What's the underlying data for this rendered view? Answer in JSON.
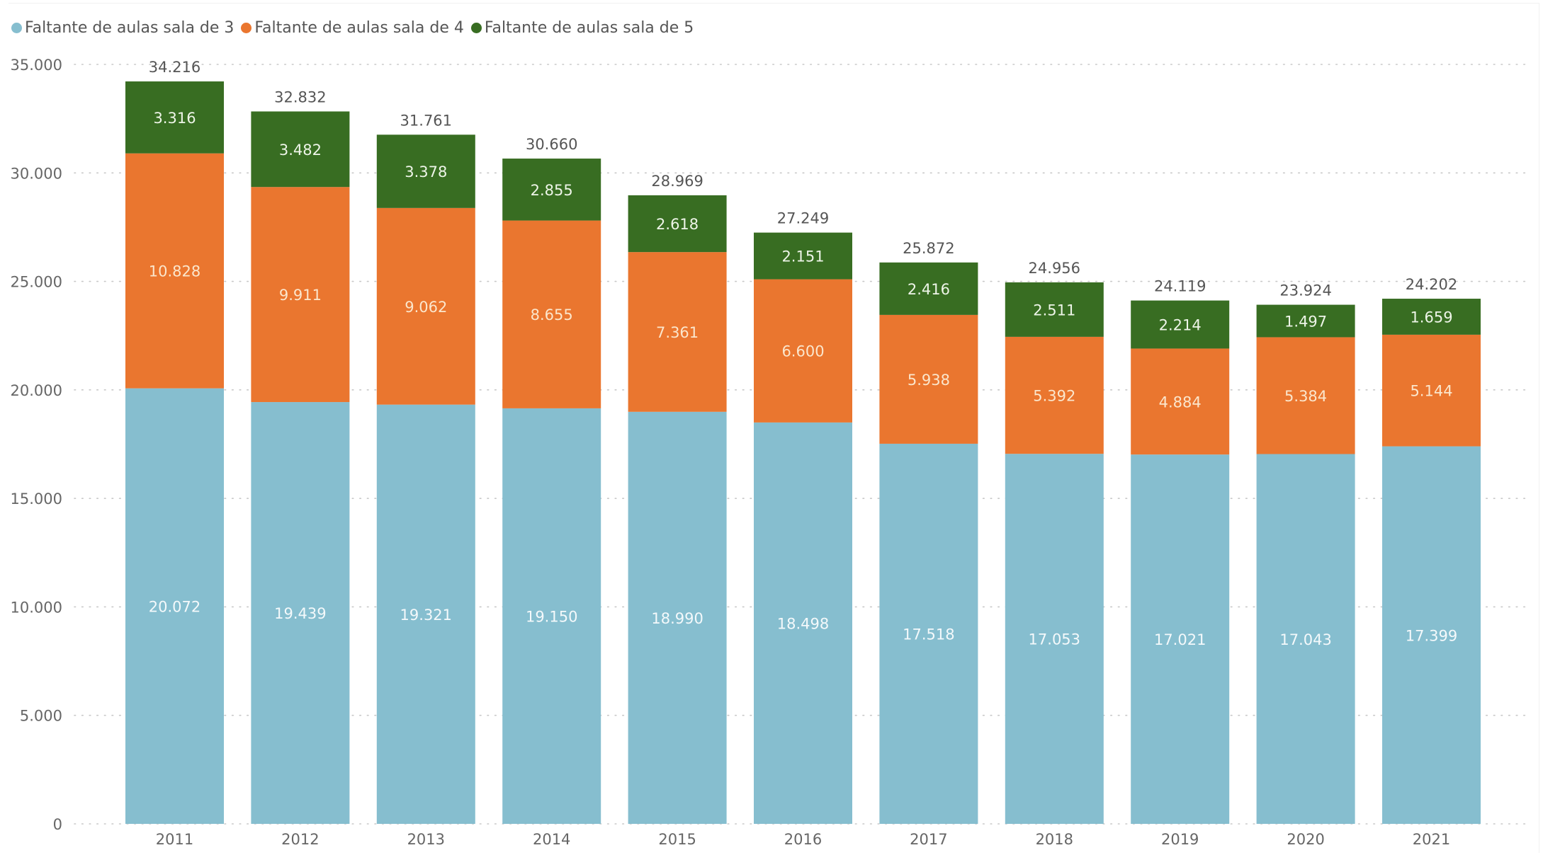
{
  "legend": {
    "items": [
      {
        "label": "Faltante de aulas sala de 3",
        "color": "#86BECF"
      },
      {
        "label": "Faltante de aulas sala de 4",
        "color": "#EA762F"
      },
      {
        "label": "Faltante de aulas sala de 5",
        "color": "#386D22"
      }
    ]
  },
  "chart_data": {
    "type": "bar",
    "stacked": true,
    "title": "",
    "xlabel": "",
    "ylabel": "",
    "categories": [
      "2011",
      "2012",
      "2013",
      "2014",
      "2015",
      "2016",
      "2017",
      "2018",
      "2019",
      "2020",
      "2021"
    ],
    "series": [
      {
        "name": "Faltante de aulas sala de 3",
        "color": "#86BECF",
        "label_color": "#F4F9FB",
        "values": [
          20072,
          19439,
          19321,
          19150,
          18990,
          18498,
          17518,
          17053,
          17021,
          17043,
          17399
        ],
        "labels": [
          "20.072",
          "19.439",
          "19.321",
          "19.150",
          "18.990",
          "18.498",
          "17.518",
          "17.053",
          "17.021",
          "17.043",
          "17.399"
        ]
      },
      {
        "name": "Faltante de aulas sala de 4",
        "color": "#EA762F",
        "label_color": "#FBE6CC",
        "values": [
          10828,
          9911,
          9062,
          8655,
          7361,
          6600,
          5938,
          5392,
          4884,
          5384,
          5144
        ],
        "labels": [
          "10.828",
          "9.911",
          "9.062",
          "8.655",
          "7.361",
          "6.600",
          "5.938",
          "5.392",
          "4.884",
          "5.384",
          "5.144"
        ]
      },
      {
        "name": "Faltante de aulas sala de 5",
        "color": "#386D22",
        "label_color": "#EEF5E8",
        "values": [
          3316,
          3482,
          3378,
          2855,
          2618,
          2151,
          2416,
          2511,
          2214,
          1497,
          1659
        ],
        "labels": [
          "3.316",
          "3.482",
          "3.378",
          "2.855",
          "2.618",
          "2.151",
          "2.416",
          "2.511",
          "2.214",
          "1.497",
          "1.659"
        ]
      }
    ],
    "totals": [
      34216,
      32832,
      31761,
      30660,
      28969,
      27249,
      25872,
      24956,
      24119,
      23924,
      24202
    ],
    "total_labels": [
      "34.216",
      "32.832",
      "31.761",
      "30.660",
      "28.969",
      "27.249",
      "25.872",
      "24.956",
      "24.119",
      "23.924",
      "24.202"
    ],
    "ylim": [
      0,
      35000
    ],
    "yticks": [
      0,
      5000,
      10000,
      15000,
      20000,
      25000,
      30000,
      35000
    ],
    "ytick_labels": [
      "0",
      "5.000",
      "10.000",
      "15.000",
      "20.000",
      "25.000",
      "30.000",
      "35.000"
    ],
    "grid": true,
    "grid_style": "dotted",
    "legend_position": "top-left"
  }
}
